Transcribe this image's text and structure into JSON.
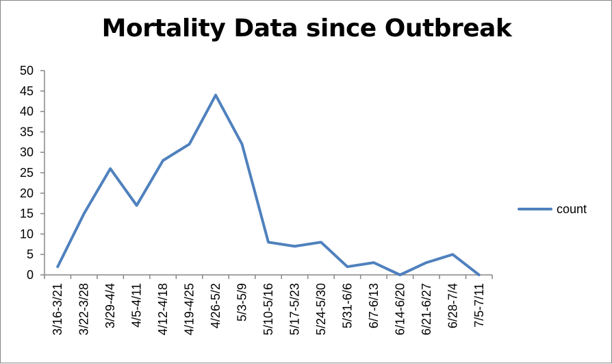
{
  "chart_data": {
    "type": "line",
    "title": "Mortality Data since Outbreak",
    "xlabel": "",
    "ylabel": "",
    "categories": [
      "3/16-3/21",
      "3/22-3/28",
      "3/29-4/4",
      "4/5-4/11",
      "4/12-4/18",
      "4/19-4/25",
      "4/26-5/2",
      "5/3-5/9",
      "5/10-5/16",
      "5/17-5/23",
      "5/24-5/30",
      "5/31-6/6",
      "6/7-6/13",
      "6/14-6/20",
      "6/21-6/27",
      "6/28-7/4",
      "7/5-7/11"
    ],
    "series": [
      {
        "name": "count",
        "values": [
          2,
          15,
          26,
          17,
          28,
          32,
          44,
          32,
          8,
          7,
          8,
          2,
          3,
          0,
          3,
          5,
          0
        ]
      }
    ],
    "ylim": [
      0,
      50
    ],
    "yticks": [
      "0",
      "5",
      "10",
      "15",
      "20",
      "25",
      "30",
      "35",
      "40",
      "45",
      "50"
    ],
    "grid": false,
    "legend_position": "right",
    "colors": {
      "series": "#4f81bd",
      "axis": "#868686"
    }
  }
}
